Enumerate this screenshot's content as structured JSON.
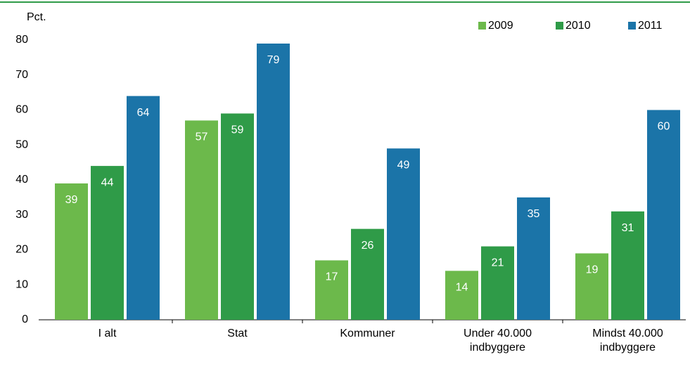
{
  "chart_data": {
    "type": "bar",
    "y_axis_label": "Pct.",
    "categories": [
      "I alt",
      "Stat",
      "Kommuner",
      "Under 40.000 indbyggere",
      "Mindst 40.000 indbyggere"
    ],
    "series": [
      {
        "name": "2009",
        "color": "#6cb94b",
        "values": [
          39,
          57,
          17,
          14,
          19
        ]
      },
      {
        "name": "2010",
        "color": "#2f9b48",
        "values": [
          44,
          59,
          26,
          21,
          31
        ]
      },
      {
        "name": "2011",
        "color": "#1b74a8",
        "values": [
          64,
          79,
          49,
          35,
          60
        ]
      }
    ],
    "ylim": [
      0,
      80
    ],
    "yticks": [
      0,
      10,
      20,
      30,
      40,
      50,
      60,
      70,
      80
    ],
    "grid": false,
    "legend": "top-right"
  }
}
